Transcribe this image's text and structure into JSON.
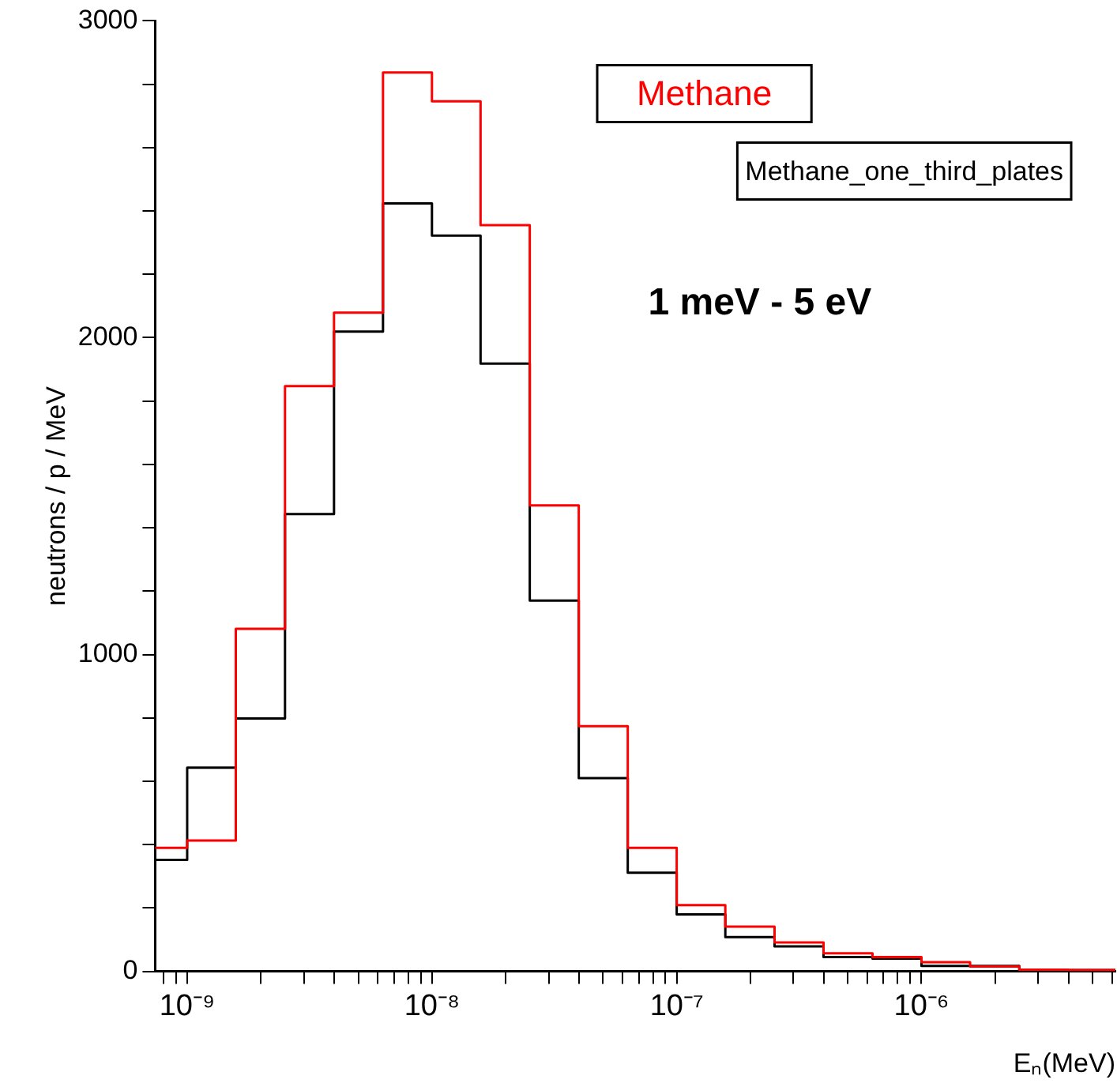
{
  "chart_data": {
    "type": "histogram",
    "xlabel": "Eₙ(MeV)",
    "ylabel": "neutrons / p / MeV",
    "bins": [
      7.4e-10,
      1e-09,
      1.58e-09,
      2.51e-09,
      3.98e-09,
      6.31e-09,
      1e-08,
      1.58e-08,
      2.51e-08,
      3.98e-08,
      6.31e-08,
      1e-07,
      1.58e-07,
      2.51e-07,
      3.98e-07,
      6.31e-07,
      1e-06,
      1.58e-06,
      2.51e-06,
      3.98e-06,
      6.2e-06
    ],
    "series": [
      {
        "name": "Methane",
        "color": "#ff0000",
        "values": [
          390,
          413,
          1081,
          1847,
          2079,
          2837,
          2746,
          2355,
          1471,
          774,
          390,
          209,
          141,
          91,
          57,
          45,
          29,
          15,
          5,
          4
        ]
      },
      {
        "name": "Methane_one_third_plates",
        "color": "#000000",
        "values": [
          352,
          643,
          798,
          1443,
          2019,
          2424,
          2322,
          1918,
          1170,
          610,
          311,
          180,
          108,
          79,
          45,
          40,
          17,
          17,
          4,
          4
        ]
      }
    ],
    "log": "x",
    "xlim": [
      7.4e-10,
      6.2e-06
    ],
    "xticks": [
      {
        "value": 8e-10,
        "label": null
      },
      {
        "value": 9e-10,
        "label": null
      },
      {
        "value": 1e-09,
        "label": "10⁻⁹"
      },
      {
        "value": 2e-09,
        "label": null
      },
      {
        "value": 3e-09,
        "label": null
      },
      {
        "value": 4e-09,
        "label": null
      },
      {
        "value": 5e-09,
        "label": null
      },
      {
        "value": 6e-09,
        "label": null
      },
      {
        "value": 7e-09,
        "label": null
      },
      {
        "value": 8e-09,
        "label": null
      },
      {
        "value": 9e-09,
        "label": null
      },
      {
        "value": 1e-08,
        "label": "10⁻⁸"
      },
      {
        "value": 2e-08,
        "label": null
      },
      {
        "value": 3e-08,
        "label": null
      },
      {
        "value": 4e-08,
        "label": null
      },
      {
        "value": 5e-08,
        "label": null
      },
      {
        "value": 6e-08,
        "label": null
      },
      {
        "value": 7e-08,
        "label": null
      },
      {
        "value": 8e-08,
        "label": null
      },
      {
        "value": 9e-08,
        "label": null
      },
      {
        "value": 1e-07,
        "label": "10⁻⁷"
      },
      {
        "value": 2e-07,
        "label": null
      },
      {
        "value": 3e-07,
        "label": null
      },
      {
        "value": 4e-07,
        "label": null
      },
      {
        "value": 5e-07,
        "label": null
      },
      {
        "value": 6e-07,
        "label": null
      },
      {
        "value": 7e-07,
        "label": null
      },
      {
        "value": 8e-07,
        "label": null
      },
      {
        "value": 9e-07,
        "label": null
      },
      {
        "value": 1e-06,
        "label": "10⁻⁶"
      },
      {
        "value": 2e-06,
        "label": null
      },
      {
        "value": 3e-06,
        "label": null
      },
      {
        "value": 4e-06,
        "label": null
      },
      {
        "value": 5e-06,
        "label": null
      },
      {
        "value": 6e-06,
        "label": null
      }
    ],
    "ylim": [
      0,
      3000
    ],
    "yticks": [
      0,
      {
        "value": 200,
        "label": null
      },
      {
        "value": 400,
        "label": null
      },
      {
        "value": 600,
        "label": null
      },
      {
        "value": 800,
        "label": null
      },
      1000,
      {
        "value": 1200,
        "label": null
      },
      {
        "value": 1400,
        "label": null
      },
      {
        "value": 1600,
        "label": null
      },
      {
        "value": 1800,
        "label": null
      },
      2000,
      {
        "value": 2200,
        "label": null
      },
      {
        "value": 2400,
        "label": null
      },
      {
        "value": 2600,
        "label": null
      },
      {
        "value": 2800,
        "label": null
      },
      3000
    ],
    "grid": false,
    "legend": "top right",
    "annotations": [
      "1 meV - 5 eV"
    ]
  }
}
